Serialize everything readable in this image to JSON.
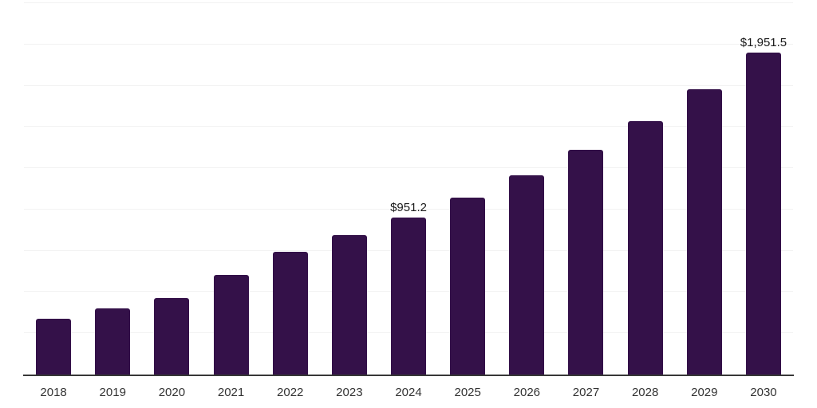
{
  "chart_data": {
    "type": "bar",
    "title": "",
    "xlabel": "",
    "ylabel": "",
    "categories": [
      "2018",
      "2019",
      "2020",
      "2021",
      "2022",
      "2023",
      "2024",
      "2025",
      "2026",
      "2027",
      "2028",
      "2029",
      "2030"
    ],
    "values": [
      339.0,
      400.7,
      465.1,
      601.3,
      745.5,
      846.6,
      951.2,
      1072.2,
      1208.6,
      1362.3,
      1535.6,
      1731.0,
      1951.5
    ],
    "value_labels": [
      "",
      "",
      "",
      "",
      "",
      "",
      "$951.2",
      "",
      "",
      "",
      "",
      "",
      "$1,951.5"
    ],
    "ylim": [
      0,
      2250
    ],
    "gridline_interval": 250,
    "grid": true,
    "y_tick_labels_visible": false,
    "legend_position": "none",
    "colors": {
      "bar": "#341149",
      "axis_line": "#373737",
      "gridline": "#f2f2f2",
      "tick_label": "#333333",
      "data_label": "#1a1a1a",
      "background": "#ffffff"
    }
  }
}
